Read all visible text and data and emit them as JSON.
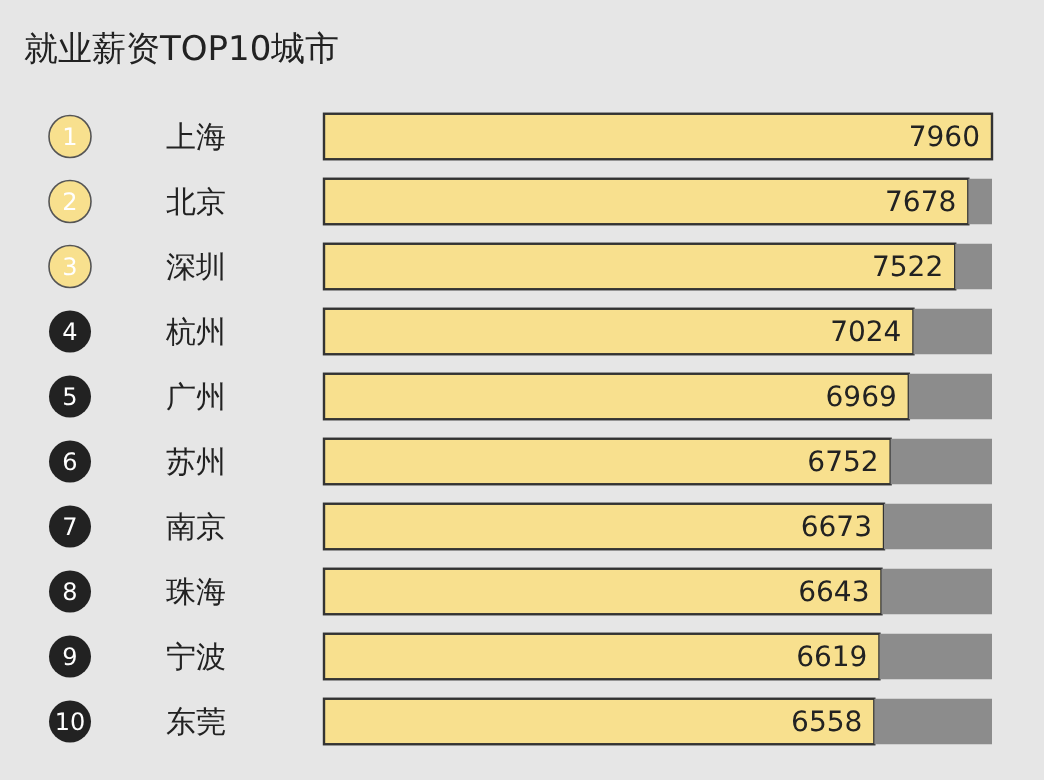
{
  "chart_data": {
    "type": "bar",
    "title": "就业薪资TOP10城市",
    "orientation": "horizontal",
    "stacked": true,
    "tick_labels": "y",
    "xlim": [
      0,
      7960
    ],
    "categories": [
      "上海",
      "北京",
      "深圳",
      "杭州",
      "广州",
      "苏州",
      "南京",
      "珠海",
      "宁波",
      "东莞"
    ],
    "series": [
      {
        "color": "#f8e08e",
        "values": [
          7960,
          7678,
          7522,
          7024,
          6969,
          6752,
          6673,
          6643,
          6619,
          6558
        ],
        "value_labels": [
          "7960",
          "7678",
          "7522",
          "7024",
          "6969",
          "6752",
          "6673",
          "6643",
          "6619",
          "6558"
        ]
      },
      {
        "color": "#8c8c8c",
        "values": [
          0,
          282,
          438,
          936,
          991,
          1208,
          1287,
          1317,
          1341,
          1402
        ]
      }
    ],
    "annotations": [
      "1",
      "2",
      "3",
      "4",
      "5",
      "6",
      "7",
      "8",
      "9",
      "10"
    ]
  }
}
